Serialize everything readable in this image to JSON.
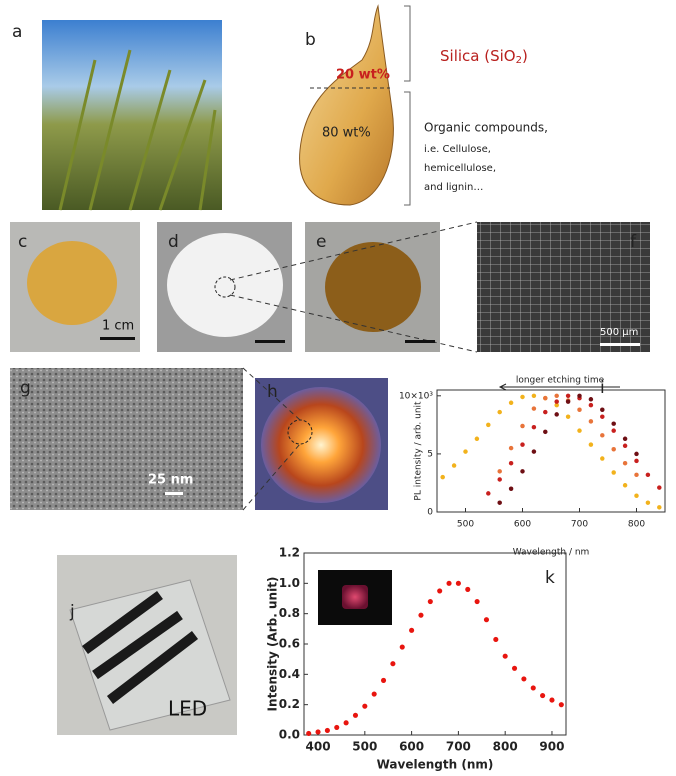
{
  "panel_labels": [
    "a",
    "b",
    "c",
    "d",
    "e",
    "f",
    "g",
    "h",
    "j"
  ],
  "husk": {
    "silica": {
      "text": "Silica (SiO",
      "sub": "2",
      "close": ")"
    },
    "silica_fraction": "20 wt%",
    "organic_fraction": "80 wt%",
    "organic_lines": [
      "Organic compounds,",
      "i.e. Cellulose,",
      "hemicellulose,",
      "and lignin…"
    ]
  },
  "scale_bars": {
    "c": "1 cm",
    "f": "500 μm",
    "g": "25 nm"
  },
  "led_label": "LED",
  "chart_data": [
    {
      "type": "scatter",
      "panel_label": "i",
      "annotation": "longer etching time",
      "x_label": "Wavelength / nm",
      "y_label": "PL intensity / arb. unit",
      "x": [
        460,
        480,
        500,
        520,
        540,
        560,
        580,
        600,
        620,
        640,
        660,
        680,
        700,
        720,
        740,
        760,
        780,
        800,
        820,
        840
      ],
      "series": [
        {
          "color": "#f2b21c",
          "values": [
            3.0,
            4.0,
            5.2,
            6.3,
            7.5,
            8.6,
            9.4,
            9.9,
            10,
            9.8,
            9.2,
            8.2,
            7.0,
            5.8,
            4.6,
            3.4,
            2.3,
            1.4,
            0.8,
            0.4
          ]
        },
        {
          "color": "#e8743a",
          "values": [
            null,
            null,
            null,
            null,
            null,
            3.5,
            5.5,
            7.4,
            8.9,
            9.8,
            10,
            9.6,
            8.8,
            7.8,
            6.6,
            5.4,
            4.2,
            3.2,
            null,
            null
          ]
        },
        {
          "color": "#c8201e",
          "values": [
            null,
            null,
            null,
            null,
            1.6,
            2.8,
            4.2,
            5.8,
            7.3,
            8.6,
            9.5,
            10,
            9.8,
            9.2,
            8.2,
            7.0,
            5.7,
            4.4,
            3.2,
            2.1
          ]
        },
        {
          "color": "#6e0f14",
          "values": [
            null,
            null,
            null,
            null,
            null,
            0.8,
            2.0,
            3.5,
            5.2,
            6.9,
            8.4,
            9.5,
            10,
            9.7,
            8.8,
            7.6,
            6.3,
            5.0,
            null,
            null
          ]
        }
      ],
      "xlim": [
        450,
        850
      ],
      "ylim": [
        0,
        10.5
      ],
      "xticks": [
        500,
        600,
        700,
        800
      ],
      "yticks": [
        0,
        5,
        {
          "value": 10,
          "label": "10×10³"
        }
      ]
    },
    {
      "type": "scatter",
      "panel_label": "k",
      "x_label": "Wavelength (nm)",
      "y_label": "Intensity (Arb. unit)",
      "x": [
        380,
        400,
        420,
        440,
        460,
        480,
        500,
        520,
        540,
        560,
        580,
        600,
        620,
        640,
        660,
        680,
        700,
        720,
        740,
        760,
        780,
        800,
        820,
        840,
        860,
        880,
        900,
        920
      ],
      "series": [
        {
          "color": "#e8150f",
          "values": [
            0.01,
            0.02,
            0.03,
            0.05,
            0.08,
            0.13,
            0.19,
            0.27,
            0.36,
            0.47,
            0.58,
            0.69,
            0.79,
            0.88,
            0.95,
            1.0,
            1.0,
            0.96,
            0.88,
            0.76,
            0.63,
            0.52,
            0.44,
            0.37,
            0.31,
            0.26,
            0.23,
            0.2
          ]
        }
      ],
      "xlim": [
        370,
        930
      ],
      "ylim": [
        0,
        1.2
      ],
      "xticks": [
        400,
        500,
        600,
        700,
        800,
        900
      ],
      "yticks": [
        {
          "value": 0,
          "label": "0.0"
        },
        0.2,
        0.4,
        0.6,
        0.8,
        {
          "value": 1,
          "label": "1.0"
        },
        1.2
      ]
    }
  ]
}
